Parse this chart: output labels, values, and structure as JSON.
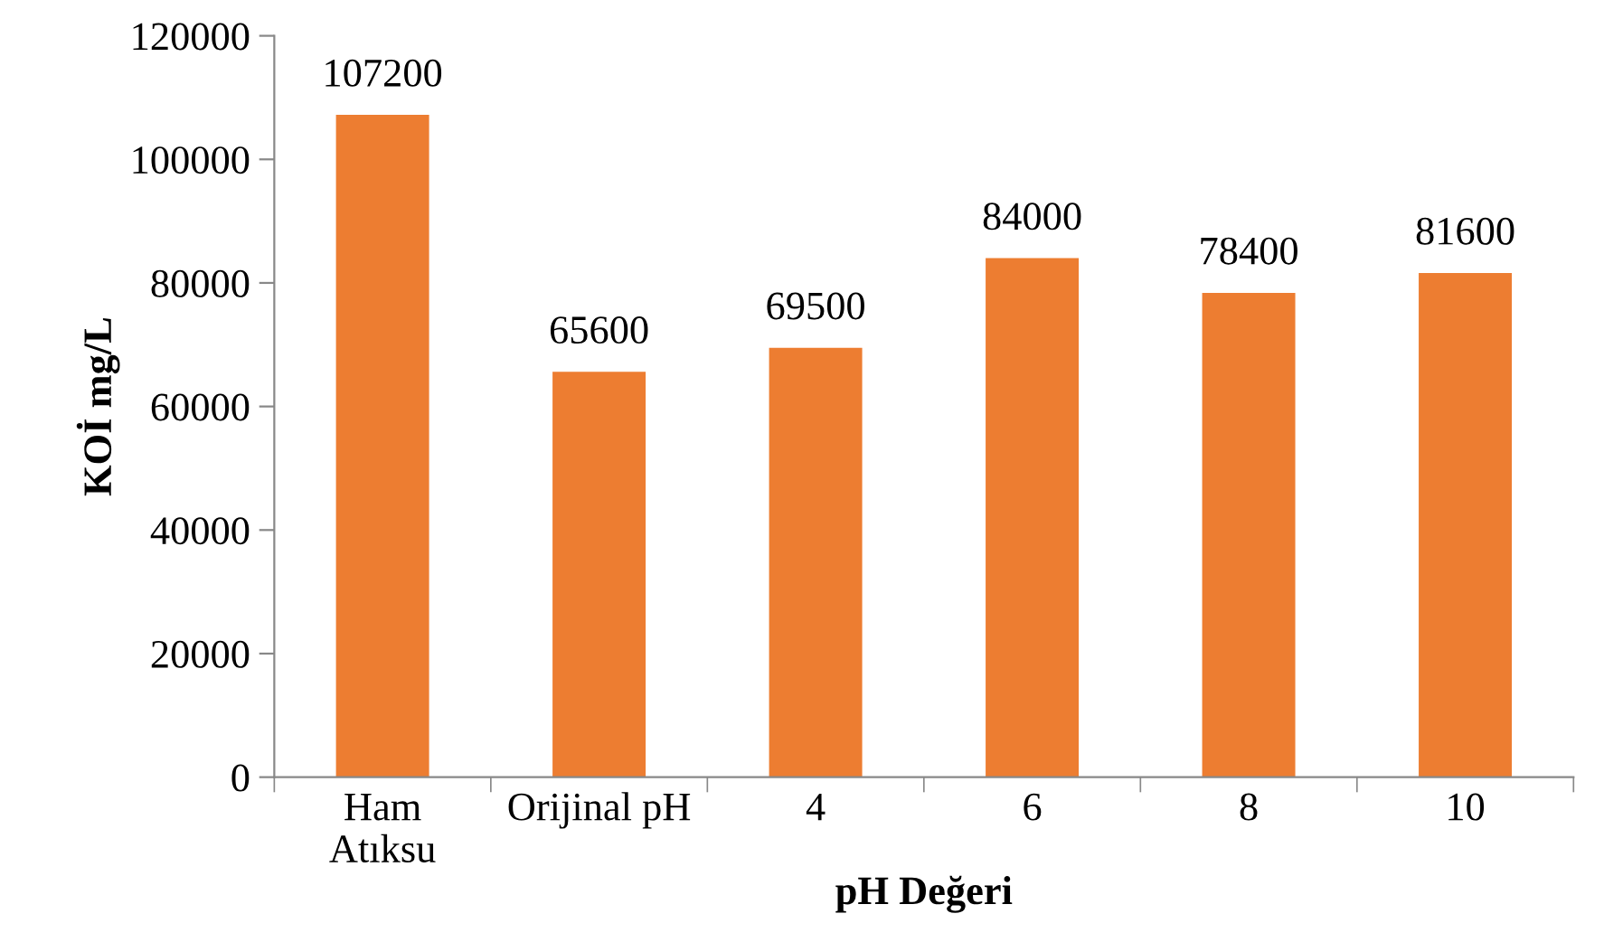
{
  "chart_data": {
    "type": "bar",
    "xlabel": "pH Değeri",
    "ylabel": "KOİ mg/L",
    "categories": [
      "Ham\nAtıksu",
      "Orijinal pH",
      "4",
      "6",
      "8",
      "10"
    ],
    "values": [
      107200,
      65600,
      69500,
      84000,
      78400,
      81600
    ],
    "color": "#ed7d31",
    "ylim": [
      0,
      120000
    ],
    "yticks": [
      0,
      20000,
      40000,
      60000,
      80000,
      100000,
      120000
    ],
    "data_labels": true,
    "grid": false,
    "legend": false
  }
}
